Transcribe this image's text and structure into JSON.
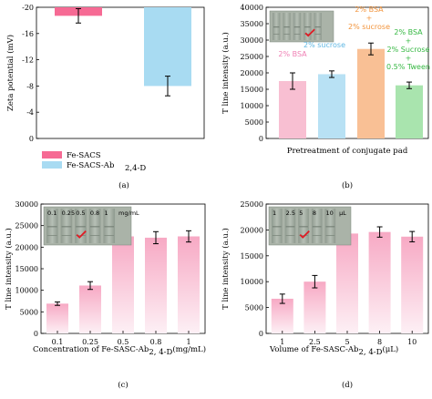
{
  "chart_data": [
    {
      "id": "a",
      "type": "bar",
      "panel_label": "(a)",
      "ylabel": "Zeta potential (mV)",
      "ylim": [
        0,
        -20
      ],
      "yticks": [
        "0",
        "-4",
        "-8",
        "-12",
        "-16",
        "-20"
      ],
      "ytick_values": [
        0,
        -4,
        -8,
        -12,
        -16,
        -20
      ],
      "series": [
        {
          "name": "Fe-SACS",
          "value": -18.7,
          "error": 1.1,
          "color": "#f66a94"
        },
        {
          "name": "Fe-SACS-Ab",
          "name_sub": "2,4-D",
          "value": -8.0,
          "error": 1.5,
          "color": "#a8dbf2"
        }
      ],
      "legend": [
        "Fe-SACS",
        "Fe-SACS-Ab2,4-D"
      ]
    },
    {
      "id": "b",
      "type": "bar",
      "panel_label": "(b)",
      "xlabel": "Pretreatment of conjugate pad",
      "ylabel": "T line intensity (a.u.)",
      "ylim": [
        0,
        40000
      ],
      "yticks": [
        "0",
        "5000",
        "10000",
        "15000",
        "20000",
        "25000",
        "30000",
        "35000",
        "40000"
      ],
      "ytick_values": [
        0,
        5000,
        10000,
        15000,
        20000,
        25000,
        30000,
        35000,
        40000
      ],
      "categories": [
        "2% BSA",
        "2% sucrose",
        "2% BSA + 2% sucrose",
        "2% BSA + 2% Sucrose + 0.5% Tween"
      ],
      "values": [
        17500,
        19600,
        27300,
        16200
      ],
      "errors": [
        2500,
        1000,
        1800,
        1000
      ],
      "colors": [
        "#f8bfd2",
        "#b8e1f4",
        "#f9c095",
        "#a9e4ae"
      ],
      "annotations": [
        {
          "lines": [
            "2% BSA"
          ],
          "color": "#ef7fb4"
        },
        {
          "lines": [
            "2% sucrose"
          ],
          "color": "#5fb7e3"
        },
        {
          "lines": [
            "2% BSA",
            "+",
            "2% sucrose"
          ],
          "color": "#f2943c"
        },
        {
          "lines": [
            "2% BSA",
            "+",
            "2% Sucrose",
            "+",
            "0.5% Tween"
          ],
          "color": "#36b843"
        }
      ]
    },
    {
      "id": "c",
      "type": "bar",
      "panel_label": "(c)",
      "xlabel": "Concentration of Fe-SASC-Ab",
      "xlabel_sub": "2, 4-D",
      "xlabel_tail": " (mg/mL)",
      "ylabel": "T line intensity (a.u.)",
      "ylim": [
        0,
        30000
      ],
      "yticks": [
        "0",
        "5000",
        "10000",
        "15000",
        "20000",
        "25000",
        "30000"
      ],
      "ytick_values": [
        0,
        5000,
        10000,
        15000,
        20000,
        25000,
        30000
      ],
      "categories": [
        "0.1",
        "0.25",
        "0.5",
        "0.8",
        "1"
      ],
      "values": [
        6900,
        11100,
        22500,
        22200,
        22500
      ],
      "errors": [
        400,
        900,
        800,
        1400,
        1300
      ],
      "inset_labels": [
        "0.1",
        "0.25",
        "0.5",
        "0.8",
        "1",
        "mg/mL"
      ]
    },
    {
      "id": "d",
      "type": "bar",
      "panel_label": "(d)",
      "xlabel": "Volume of Fe-SASC-Ab",
      "xlabel_sub": "2, 4-D",
      "xlabel_tail": " (μL)",
      "ylabel": "T line intensity (a.u.)",
      "ylim": [
        0,
        25000
      ],
      "yticks": [
        "0",
        "5000",
        "10000",
        "15000",
        "20000",
        "25000"
      ],
      "ytick_values": [
        0,
        5000,
        10000,
        15000,
        20000,
        25000
      ],
      "categories": [
        "1",
        "2.5",
        "5",
        "8",
        "10"
      ],
      "values": [
        6700,
        10000,
        19300,
        19600,
        18700
      ],
      "errors": [
        900,
        1200,
        900,
        1000,
        1000
      ],
      "inset_labels": [
        "1",
        "2.5",
        "5",
        "8",
        "10",
        "μL"
      ]
    }
  ],
  "colors": {
    "pink_bar": "#fcc8d9",
    "pink_bar_light": "#fdeaf1",
    "error_bar": "#000000",
    "check": "#e01b24"
  }
}
